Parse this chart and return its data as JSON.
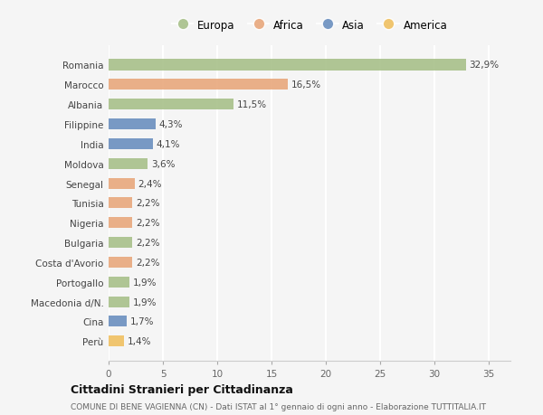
{
  "countries": [
    "Romania",
    "Marocco",
    "Albania",
    "Filippine",
    "India",
    "Moldova",
    "Senegal",
    "Tunisia",
    "Nigeria",
    "Bulgaria",
    "Costa d'Avorio",
    "Portogallo",
    "Macedonia d/N.",
    "Cina",
    "Perù"
  ],
  "values": [
    32.9,
    16.5,
    11.5,
    4.3,
    4.1,
    3.6,
    2.4,
    2.2,
    2.2,
    2.2,
    2.2,
    1.9,
    1.9,
    1.7,
    1.4
  ],
  "labels": [
    "32,9%",
    "16,5%",
    "11,5%",
    "4,3%",
    "4,1%",
    "3,6%",
    "2,4%",
    "2,2%",
    "2,2%",
    "2,2%",
    "2,2%",
    "1,9%",
    "1,9%",
    "1,7%",
    "1,4%"
  ],
  "continents": [
    "Europa",
    "Africa",
    "Europa",
    "Asia",
    "Asia",
    "Europa",
    "Africa",
    "Africa",
    "Africa",
    "Europa",
    "Africa",
    "Europa",
    "Europa",
    "Asia",
    "America"
  ],
  "colors": {
    "Europa": "#a8c08a",
    "Africa": "#e8a87c",
    "Asia": "#6b8fbf",
    "America": "#f0c060"
  },
  "legend_order": [
    "Europa",
    "Africa",
    "Asia",
    "America"
  ],
  "background_color": "#f5f5f5",
  "title": "Cittadini Stranieri per Cittadinanza",
  "subtitle": "COMUNE DI BENE VAGIENNA (CN) - Dati ISTAT al 1° gennaio di ogni anno - Elaborazione TUTTITALIA.IT",
  "xlim": [
    0,
    37
  ],
  "xticks": [
    0,
    5,
    10,
    15,
    20,
    25,
    30,
    35
  ],
  "bar_height": 0.55,
  "label_fontsize": 7.5,
  "ytick_fontsize": 7.5,
  "xtick_fontsize": 7.5,
  "legend_fontsize": 8.5,
  "title_fontsize": 9,
  "subtitle_fontsize": 6.5
}
